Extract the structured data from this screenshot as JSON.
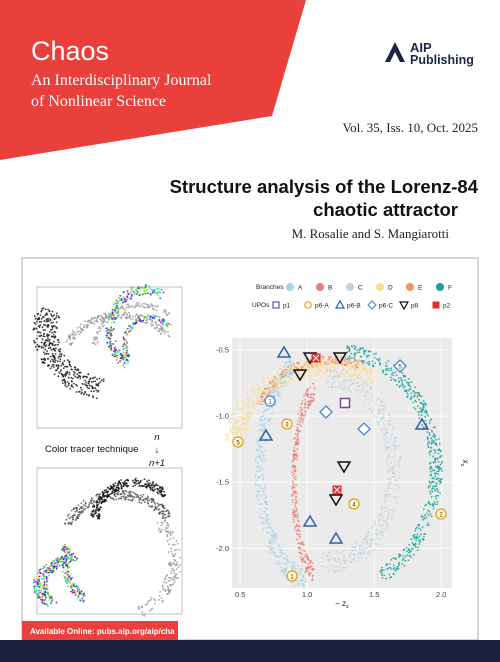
{
  "header": {
    "journal": "Chaos",
    "subtitle_lines": [
      "An Interdisciplinary Journal",
      "of Nonlinear Science"
    ],
    "publisher_lines": [
      "AIP",
      "Publishing"
    ],
    "issue": "Vol. 35, Iss. 10, Oct. 2025"
  },
  "article": {
    "title_lines": [
      "Structure analysis of the Lorenz-84",
      "chaotic attractor"
    ],
    "authors": "M. Rosalie and S. Mangiarotti"
  },
  "figure": {
    "tracer_label": "Color tracer technique",
    "step": [
      "n",
      "↓",
      "n+1"
    ],
    "legend": {
      "branches_title": "Branches",
      "branches": [
        {
          "name": "A",
          "color": "#a9d6e5"
        },
        {
          "name": "B",
          "color": "#ef7b7b"
        },
        {
          "name": "C",
          "color": "#c5d2da"
        },
        {
          "name": "D",
          "color": "#f8df8e"
        },
        {
          "name": "E",
          "color": "#f4935a"
        },
        {
          "name": "F",
          "color": "#17a398"
        }
      ],
      "upos_title": "UPOs",
      "upos": [
        "p1",
        "p6-A",
        "p6-B",
        "p6-C",
        "p8",
        "p2"
      ]
    },
    "plot": {
      "xlabel": [
        "− z",
        "z"
      ],
      "ylabel": [
        "x",
        "z"
      ],
      "xlim": [
        0.44,
        2.08
      ],
      "ylim": [
        -2.3,
        -0.41
      ],
      "xticks": [
        0.5,
        {
          "value": 1.0,
          "label": "1.0"
        },
        1.5,
        {
          "value": 2.0,
          "label": "2.0"
        }
      ],
      "yticks": [
        -0.5,
        {
          "value": -1.0,
          "label": "-1.0"
        },
        -1.5,
        {
          "value": -2.0,
          "label": "-2.0"
        }
      ],
      "orbit_labels": [
        "1",
        "2",
        "3",
        "4",
        "5",
        "1",
        "5"
      ],
      "grid": true
    }
  },
  "footer": {
    "online": "Available Online: pubs.aip.org/aip/cha"
  }
}
